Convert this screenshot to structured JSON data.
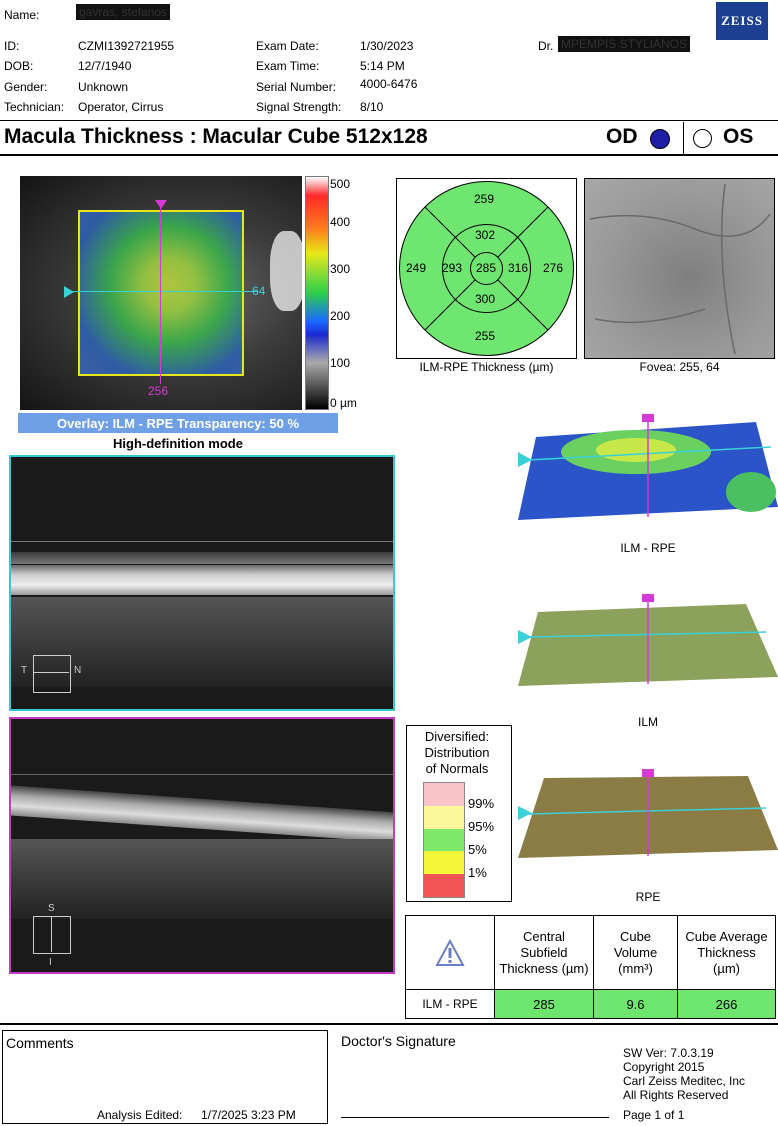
{
  "patient": {
    "name_label": "Name:",
    "name_value": "gavras, stefanos",
    "id_label": "ID:",
    "id_value": "CZMI1392721955",
    "dob_label": "DOB:",
    "dob_value": "12/7/1940",
    "gender_label": "Gender:",
    "gender_value": "Unknown",
    "tech_label": "Technician:",
    "tech_value": "Operator, Cirrus"
  },
  "exam": {
    "date_label": "Exam Date:",
    "date_value": "1/30/2023",
    "time_label": "Exam Time:",
    "time_value": "5:14 PM",
    "serial_label": "Serial Number:",
    "serial_value": "4000-6476",
    "signal_label": "Signal Strength:",
    "signal_value": "8/10",
    "doctor_label": "Dr.",
    "doctor_value": "MPEMPIS STYLIANOS"
  },
  "logo": "ZEISS",
  "header": {
    "title": "Macula Thickness : Macular Cube 512x128",
    "od": "OD",
    "os": "OS"
  },
  "fundus": {
    "scale_labels": [
      "500",
      "400",
      "300",
      "200",
      "100",
      "0 µm"
    ],
    "h_marker": "64",
    "v_marker": "256",
    "overlay_caption": "Overlay: ILM - RPE  Transparency: 50 %",
    "hd_mode": "High-definition mode"
  },
  "etdrs": {
    "values": {
      "outer_top": "259",
      "inner_top": "302",
      "outer_left": "249",
      "inner_left": "293",
      "center": "285",
      "inner_right": "316",
      "outer_right": "276",
      "inner_bottom": "300",
      "outer_bottom": "255"
    },
    "caption": "ILM-RPE Thickness (µm)",
    "fovea_caption": "Fovea: 255, 64"
  },
  "scans": {
    "h_left": "T",
    "h_right": "N",
    "v_top": "S",
    "v_bottom": "I"
  },
  "surfaces": {
    "ilm_rpe": "ILM - RPE",
    "ilm": "ILM",
    "rpe": "RPE"
  },
  "normals": {
    "title_lines": [
      "Diversified:",
      "Distribution",
      "of Normals"
    ],
    "levels": [
      "99%",
      "95%",
      "5%",
      "1%"
    ],
    "colors": [
      "#f9c4c8",
      "#fbf79a",
      "#7ee86a",
      "#f5f53a",
      "#f25555"
    ]
  },
  "results": {
    "headers": [
      "Central Subfield Thickness (µm)",
      "Cube Volume (mm³)",
      "Cube Average Thickness (µm)"
    ],
    "row_label": "ILM - RPE",
    "values": [
      "285",
      "9.6",
      "266"
    ]
  },
  "footer": {
    "comments": "Comments",
    "analysis_edited_label": "Analysis Edited:",
    "analysis_edited_value": "1/7/2025 3:23 PM",
    "signature": "Doctor's Signature",
    "sw_ver": "SW Ver: 7.0.3.19",
    "copyright": "Copyright 2015",
    "company": "Carl Zeiss Meditec, Inc",
    "rights": "All Rights Reserved",
    "page": "Page 1 of 1"
  }
}
